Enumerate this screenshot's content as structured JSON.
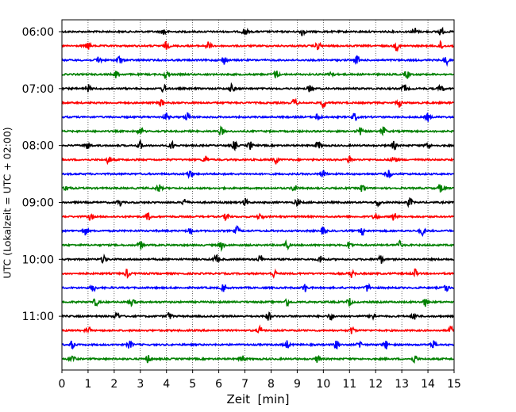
{
  "chart_data": {
    "type": "line",
    "title": "",
    "xlabel": "Zeit  [min]",
    "ylabel": "UTC (Lokalzeit = UTC + 02:00)",
    "xlim": [
      0,
      15
    ],
    "x_ticks": [
      "0",
      "1",
      "2",
      "3",
      "4",
      "5",
      "6",
      "7",
      "8",
      "9",
      "10",
      "11",
      "12",
      "13",
      "14",
      "15"
    ],
    "y_ticks": [
      "06:00",
      "07:00",
      "08:00",
      "09:00",
      "10:00",
      "11:00"
    ],
    "y_range_utc": [
      "06:00",
      "11:45"
    ],
    "trace_interval_min": 15,
    "grid": "vertical dotted lines at each minute",
    "color_cycle": [
      "#000000",
      "#ff0000",
      "#0000ff",
      "#008000"
    ],
    "series": [
      {
        "start": "06:00",
        "bursts_min": [
          3.9,
          7.0,
          9.2,
          13.5,
          14.5
        ]
      },
      {
        "start": "06:15",
        "bursts_min": [
          1.0,
          4.0,
          5.6,
          9.8,
          12.8,
          14.5
        ]
      },
      {
        "start": "06:30",
        "bursts_min": [
          1.4,
          2.2,
          6.2,
          11.3,
          14.7
        ]
      },
      {
        "start": "06:45",
        "bursts_min": [
          2.1,
          4.0,
          8.2,
          10.3,
          13.2
        ]
      },
      {
        "start": "07:00",
        "bursts_min": [
          1.0,
          3.9,
          6.5,
          9.5,
          13.1,
          14.5
        ]
      },
      {
        "start": "07:15",
        "bursts_min": [
          3.8,
          8.9,
          10.0,
          12.9
        ]
      },
      {
        "start": "07:30",
        "bursts_min": [
          4.0,
          4.8,
          9.8,
          11.2,
          14.0
        ]
      },
      {
        "start": "07:45",
        "bursts_min": [
          3.0,
          6.1,
          11.4,
          12.3
        ]
      },
      {
        "start": "08:00",
        "bursts_min": [
          1.0,
          3.0,
          4.2,
          6.6,
          7.2,
          9.8,
          12.7,
          14.0
        ]
      },
      {
        "start": "08:15",
        "bursts_min": [
          1.8,
          5.5,
          8.2,
          11.0,
          12.7
        ]
      },
      {
        "start": "08:30",
        "bursts_min": [
          4.9,
          10.0,
          12.5
        ]
      },
      {
        "start": "08:45",
        "bursts_min": [
          0.2,
          3.7,
          8.9,
          11.5,
          14.5
        ]
      },
      {
        "start": "09:00",
        "bursts_min": [
          2.2,
          4.7,
          7.0,
          9.0,
          12.1,
          13.3
        ]
      },
      {
        "start": "09:15",
        "bursts_min": [
          1.1,
          3.3,
          6.3,
          7.6,
          12.0,
          12.7
        ]
      },
      {
        "start": "09:30",
        "bursts_min": [
          0.9,
          4.9,
          6.7,
          10.0,
          11.5,
          13.8
        ]
      },
      {
        "start": "09:45",
        "bursts_min": [
          3.0,
          6.1,
          8.6,
          11.0,
          12.9
        ]
      },
      {
        "start": "10:00",
        "bursts_min": [
          1.6,
          5.9,
          7.6,
          9.9,
          12.2
        ]
      },
      {
        "start": "10:15",
        "bursts_min": [
          2.5,
          8.1,
          11.1,
          13.5
        ]
      },
      {
        "start": "10:30",
        "bursts_min": [
          1.2,
          6.2,
          9.3,
          11.7,
          14.7
        ]
      },
      {
        "start": "10:45",
        "bursts_min": [
          1.3,
          2.7,
          8.6,
          11.0,
          13.9
        ]
      },
      {
        "start": "11:00",
        "bursts_min": [
          2.1,
          4.1,
          7.9,
          10.3,
          11.9,
          13.5
        ]
      },
      {
        "start": "11:15",
        "bursts_min": [
          1.0,
          7.6,
          11.1,
          14.9
        ]
      },
      {
        "start": "11:30",
        "bursts_min": [
          0.4,
          2.6,
          8.6,
          10.5,
          11.4,
          12.4,
          14.2
        ]
      },
      {
        "start": "11:45",
        "bursts_min": [
          0.4,
          3.3,
          6.9,
          9.8,
          13.5
        ]
      }
    ]
  }
}
